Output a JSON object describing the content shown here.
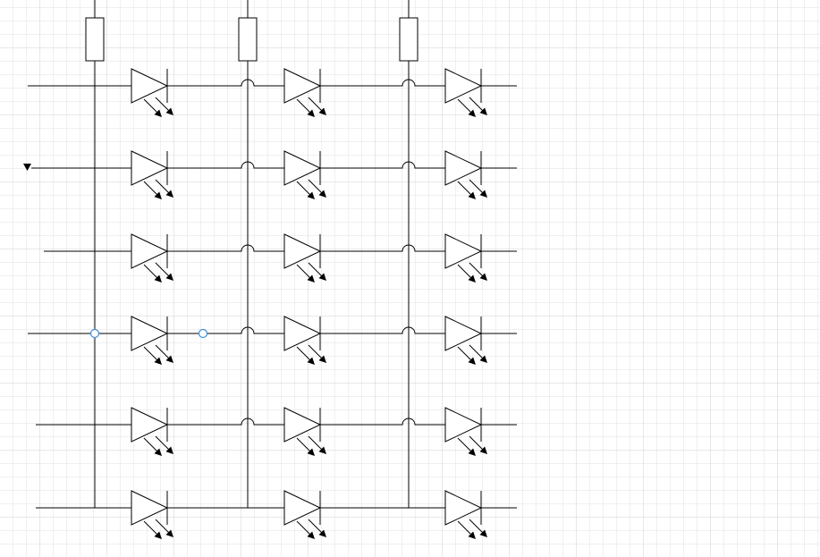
{
  "canvas": {
    "background": "#ffffff",
    "grid": true,
    "grid_color": "#e2e2e2",
    "grid_major_color": "#d2d2d2",
    "line_color": "#000000",
    "selection_color": "#3d8fe0"
  },
  "matrix": {
    "component": "light-emitting-diode",
    "symbol_icon": "led-icon",
    "resistor_icon": "resistor-icon",
    "columns": 3,
    "rows": 6,
    "resistors_per_column": 1,
    "row_line_crossings": "line-jump-arcs",
    "row_input_arrow_row": 2,
    "selected_connector_row": 4
  }
}
